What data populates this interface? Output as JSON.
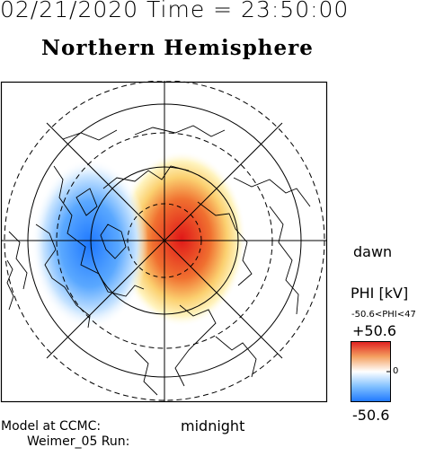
{
  "header": {
    "date_time": "02/21/2020 Time = 23:50:00",
    "hemisphere": "Northern Hemisphere"
  },
  "map": {
    "projection": "north polar",
    "orientation_labels": {
      "dawn": "dawn",
      "midnight": "midnight"
    },
    "variable": "PHI [kV]",
    "range_text": "-50.6<PHI<47",
    "colorbar": {
      "max_label": "+50.6",
      "zero_label": "0",
      "min_label": "-50.6",
      "colors": [
        "#1e78ff",
        "#ffffff",
        "#e02020"
      ]
    },
    "cells": [
      {
        "name": "positive-cell",
        "sign": "+",
        "color": "#e02020"
      },
      {
        "name": "negative-cell",
        "sign": "-",
        "color": "#1e78ff"
      }
    ]
  },
  "footer": {
    "model_label": "Model at CCMC:",
    "run_label": "Weimer_05 Run:"
  }
}
